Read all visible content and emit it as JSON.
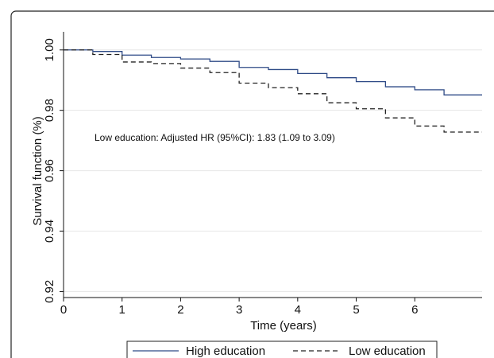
{
  "chart_data": {
    "type": "line",
    "title": "",
    "xlabel": "Time (years)",
    "ylabel": "Survival function (%)",
    "xlim": [
      0,
      7.15
    ],
    "ylim": [
      0.918,
      1.006
    ],
    "x_ticks": [
      0,
      1,
      2,
      3,
      4,
      5,
      6
    ],
    "y_ticks": [
      0.92,
      0.94,
      0.96,
      0.98,
      1.0
    ],
    "y_tick_labels": [
      "0.92",
      "0.94",
      "0.96",
      "0.98",
      "1.00"
    ],
    "grid": true,
    "legend_position": "bottom",
    "annotation": "Low education: Adjusted HR (95%CI): 1.83 (1.09 to 3.09)",
    "series": [
      {
        "name": "High education",
        "color": "#2e4a86",
        "style": "solid",
        "x": [
          0,
          0.5,
          1.0,
          1.5,
          2.0,
          2.5,
          3.0,
          3.5,
          4.0,
          4.5,
          5.0,
          5.5,
          6.0,
          6.5,
          7.15
        ],
        "y": [
          1.0,
          0.9995,
          0.9983,
          0.9975,
          0.997,
          0.9962,
          0.9942,
          0.9935,
          0.9922,
          0.9908,
          0.9895,
          0.9878,
          0.9868,
          0.9851,
          0.9851
        ]
      },
      {
        "name": "Low education",
        "color": "#222222",
        "style": "dashed",
        "x": [
          0,
          0.5,
          1.0,
          1.5,
          2.0,
          2.5,
          3.0,
          3.5,
          4.0,
          4.5,
          5.0,
          5.5,
          6.0,
          6.5,
          7.15
        ],
        "y": [
          1.0,
          0.9985,
          0.996,
          0.9955,
          0.994,
          0.9925,
          0.989,
          0.9875,
          0.9855,
          0.9825,
          0.9805,
          0.9775,
          0.9748,
          0.9728,
          0.9728
        ]
      }
    ]
  }
}
